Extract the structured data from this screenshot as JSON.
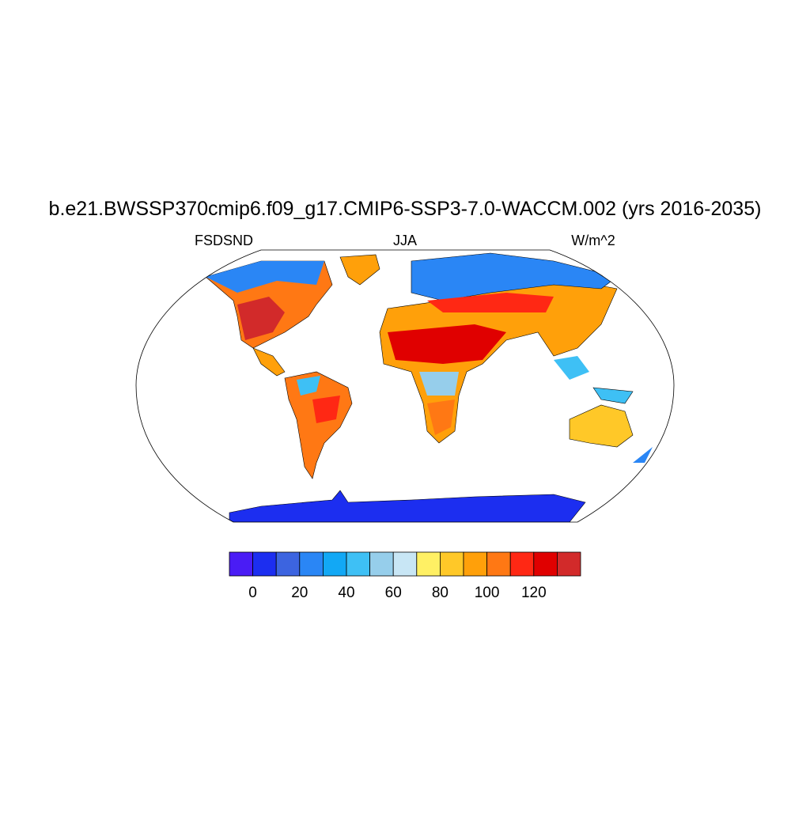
{
  "title": "b.e21.BWSSP370cmip6.f09_g17.CMIP6-SSP3-7.0-WACCM.002 (yrs 2016-2035)",
  "left_subtitle": "FSDSND",
  "center_subtitle": "JJA",
  "right_subtitle": "W/m^2",
  "colorbar": {
    "levels": [
      0,
      10,
      20,
      30,
      40,
      50,
      60,
      70,
      80,
      90,
      100,
      110,
      120,
      130
    ],
    "ticks": [
      0,
      20,
      40,
      60,
      80,
      100,
      120
    ],
    "colors": [
      "#4a1cf5",
      "#1c2ef0",
      "#3c64e0",
      "#2a86f5",
      "#12a8f5",
      "#3ec0f5",
      "#96ceeb",
      "#c8e6f5",
      "#fff064",
      "#ffc828",
      "#ffa00a",
      "#ff7814",
      "#ff2814",
      "#e00000",
      "#d22a2a"
    ]
  }
}
